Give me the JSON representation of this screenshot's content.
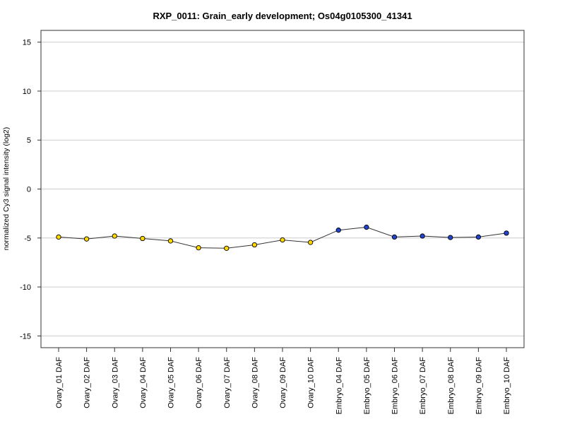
{
  "chart_data": {
    "type": "line",
    "title": "RXP_0011: Grain_early development; Os04g0105300_41341",
    "xlabel": "",
    "ylabel": "normalized Cy3 signal intensity (log2)",
    "ylim": [
      -16.2,
      16.2
    ],
    "yticks": [
      15,
      10,
      5,
      0,
      -5,
      -10,
      -15
    ],
    "grid": true,
    "categories": [
      "Ovary_01 DAF",
      "Ovary_02 DAF",
      "Ovary_03 DAF",
      "Ovary_04 DAF",
      "Ovary_05 DAF",
      "Ovary_06 DAF",
      "Ovary_07 DAF",
      "Ovary_08 DAF",
      "Ovary_09 DAF",
      "Ovary_10 DAF",
      "Embryo_04 DAF",
      "Embryo_05 DAF",
      "Embryo_06 DAF",
      "Embryo_07 DAF",
      "Embryo_08 DAF",
      "Embryo_09 DAF",
      "Embryo_10 DAF"
    ],
    "values": [
      -4.9,
      -5.1,
      -4.8,
      -5.05,
      -5.3,
      -6.0,
      -6.05,
      -5.7,
      -5.2,
      -5.45,
      -4.2,
      -3.9,
      -4.9,
      -4.8,
      -4.95,
      -4.9,
      -4.5
    ],
    "point_colors": [
      "#ffd700",
      "#ffd700",
      "#ffd700",
      "#ffd700",
      "#ffd700",
      "#ffd700",
      "#ffd700",
      "#ffd700",
      "#ffd700",
      "#ffd700",
      "#2244cc",
      "#2244cc",
      "#2244cc",
      "#2244cc",
      "#2244cc",
      "#2244cc",
      "#2244cc"
    ],
    "line_color": "#333333",
    "grid_color": "#cccccc"
  }
}
